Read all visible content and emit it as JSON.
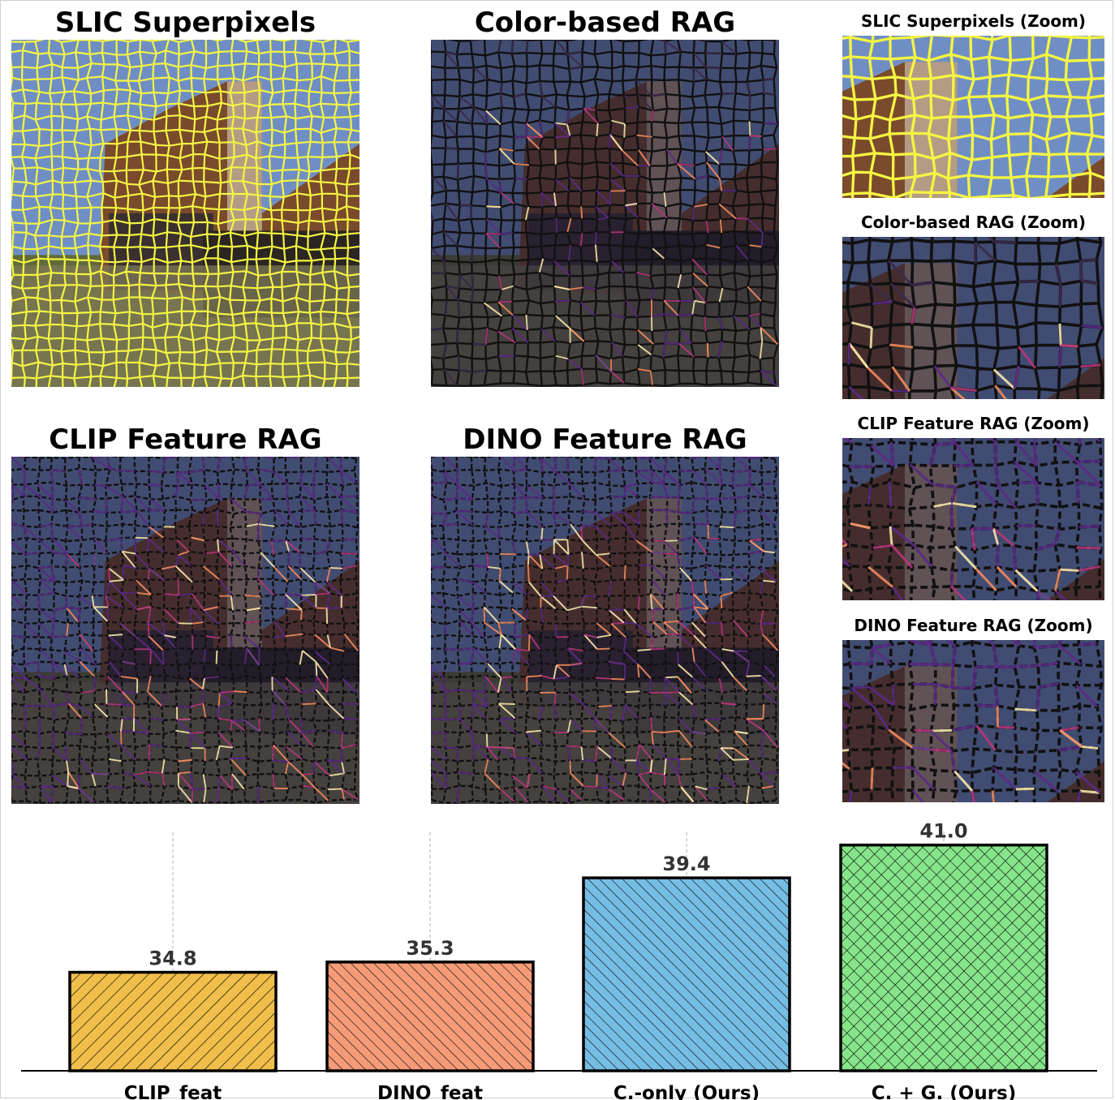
{
  "panels": {
    "slic": {
      "title": "SLIC Superpixels"
    },
    "color_rag": {
      "title": "Color-based RAG"
    },
    "clip_rag": {
      "title": "CLIP Feature RAG"
    },
    "dino_rag": {
      "title": "DINO Feature RAG"
    },
    "slic_zoom": {
      "title": "SLIC Superpixels (Zoom)"
    },
    "color_zoom": {
      "title": "Color-based RAG (Zoom)"
    },
    "clip_zoom": {
      "title": "CLIP Feature RAG (Zoom)"
    },
    "dino_zoom": {
      "title": "DINO Feature RAG (Zoom)"
    }
  },
  "colors": {
    "grid_yellow": "#f5f542",
    "sky": "#6b8fc9",
    "dark_edge": "#111111",
    "purple": "#5b2a86",
    "magenta": "#b5367a",
    "orange": "#f08a5d",
    "cream": "#f6e6a8"
  },
  "chart_data": {
    "type": "bar",
    "categories": [
      "CLIP_feat",
      "DINO_feat",
      "C.-only (Ours)",
      "C. + G. (Ours)"
    ],
    "values": [
      34.8,
      35.3,
      39.4,
      41.0
    ],
    "value_labels": [
      "34.8",
      "35.3",
      "39.4",
      "41.0"
    ],
    "colors": [
      "#f0be4a",
      "#f59b78",
      "#76bde3",
      "#86e48a"
    ],
    "hatches": [
      "/",
      "\\",
      "\\",
      "x"
    ],
    "title": "",
    "xlabel": "",
    "ylabel": "",
    "ylim": [
      30,
      42
    ]
  }
}
